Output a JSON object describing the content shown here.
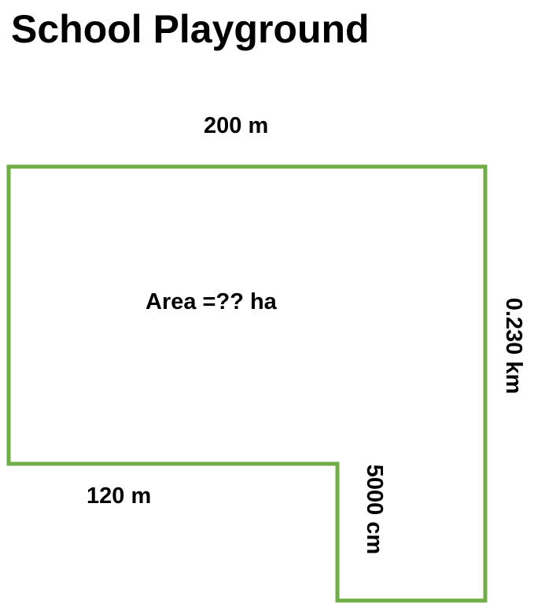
{
  "title": "School Playground",
  "labels": {
    "top": "200 m",
    "right": "0.230 km",
    "bottom_left": "120 m",
    "notch": "5000 cm",
    "area": "Area =?? ha"
  },
  "colors": {
    "outline": "#70AD47",
    "text": "#000000",
    "background": "#FFFFFF"
  }
}
